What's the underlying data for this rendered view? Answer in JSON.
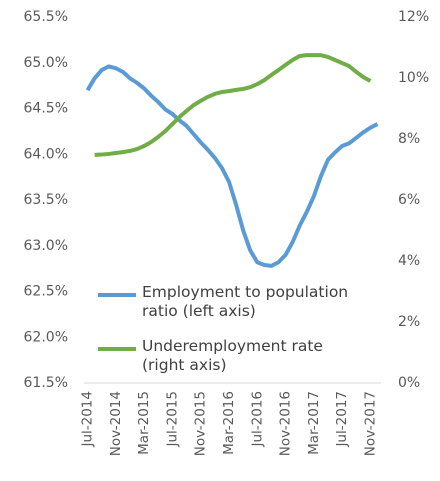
{
  "chart_data": {
    "type": "line",
    "categories": [
      "Jul-2014",
      null,
      null,
      null,
      "Nov-2014",
      null,
      null,
      null,
      "Mar-2015",
      null,
      null,
      null,
      "Jul-2015",
      null,
      null,
      null,
      "Nov-2015",
      null,
      null,
      null,
      "Mar-2016",
      null,
      null,
      null,
      "Jul-2016",
      null,
      null,
      null,
      "Nov-2016",
      null,
      null,
      null,
      "Mar-2017",
      null,
      null,
      null,
      "Jul-2017",
      null,
      null,
      null,
      "Nov-2017",
      null
    ],
    "series": [
      {
        "name": "Employment to population ratio (left axis)",
        "color": "#5b9bd5",
        "axis": "y",
        "values": [
          64.7,
          64.83,
          64.92,
          64.96,
          64.94,
          64.9,
          64.83,
          64.78,
          64.72,
          64.64,
          64.57,
          64.49,
          64.44,
          64.37,
          64.31,
          64.22,
          64.13,
          64.05,
          63.96,
          63.85,
          63.7,
          63.45,
          63.17,
          62.95,
          62.82,
          62.79,
          62.78,
          62.82,
          62.9,
          63.04,
          63.22,
          63.37,
          63.54,
          63.76,
          63.94,
          64.02,
          64.09,
          64.12,
          64.18,
          64.24,
          64.29,
          64.33
        ]
      },
      {
        "name": "Underemployment rate (right axis)",
        "color": "#70ad47",
        "axis": "y2",
        "values": [
          null,
          7.48,
          7.49,
          7.51,
          7.54,
          7.57,
          7.61,
          7.67,
          7.77,
          7.9,
          8.07,
          8.26,
          8.49,
          8.72,
          8.92,
          9.11,
          9.25,
          9.38,
          9.48,
          9.54,
          9.57,
          9.61,
          9.64,
          9.7,
          9.8,
          9.93,
          10.1,
          10.26,
          10.43,
          10.59,
          10.72,
          10.75,
          10.75,
          10.75,
          10.69,
          10.59,
          10.49,
          10.39,
          10.2,
          10.03,
          9.9,
          null
        ]
      }
    ],
    "ylim": [
      61.5,
      65.5
    ],
    "yticks": [
      {
        "value": 61.5,
        "label": "61.5%"
      },
      {
        "value": 62.0,
        "label": "62.0%"
      },
      {
        "value": 62.5,
        "label": "62.5%"
      },
      {
        "value": 63.0,
        "label": "63.0%"
      },
      {
        "value": 63.5,
        "label": "63.5%"
      },
      {
        "value": 64.0,
        "label": "64.0%"
      },
      {
        "value": 64.5,
        "label": "64.5%"
      },
      {
        "value": 65.0,
        "label": "65.0%"
      },
      {
        "value": 65.5,
        "label": "65.5%"
      }
    ],
    "y2lim": [
      0,
      12
    ],
    "y2ticks": [
      {
        "value": 0,
        "label": "0%"
      },
      {
        "value": 2,
        "label": "2%"
      },
      {
        "value": 4,
        "label": "4%"
      },
      {
        "value": 6,
        "label": "6%"
      },
      {
        "value": 8,
        "label": "8%"
      },
      {
        "value": 10,
        "label": "10%"
      },
      {
        "value": 12,
        "label": "12%"
      }
    ],
    "grid": false,
    "legend": "lower right"
  }
}
